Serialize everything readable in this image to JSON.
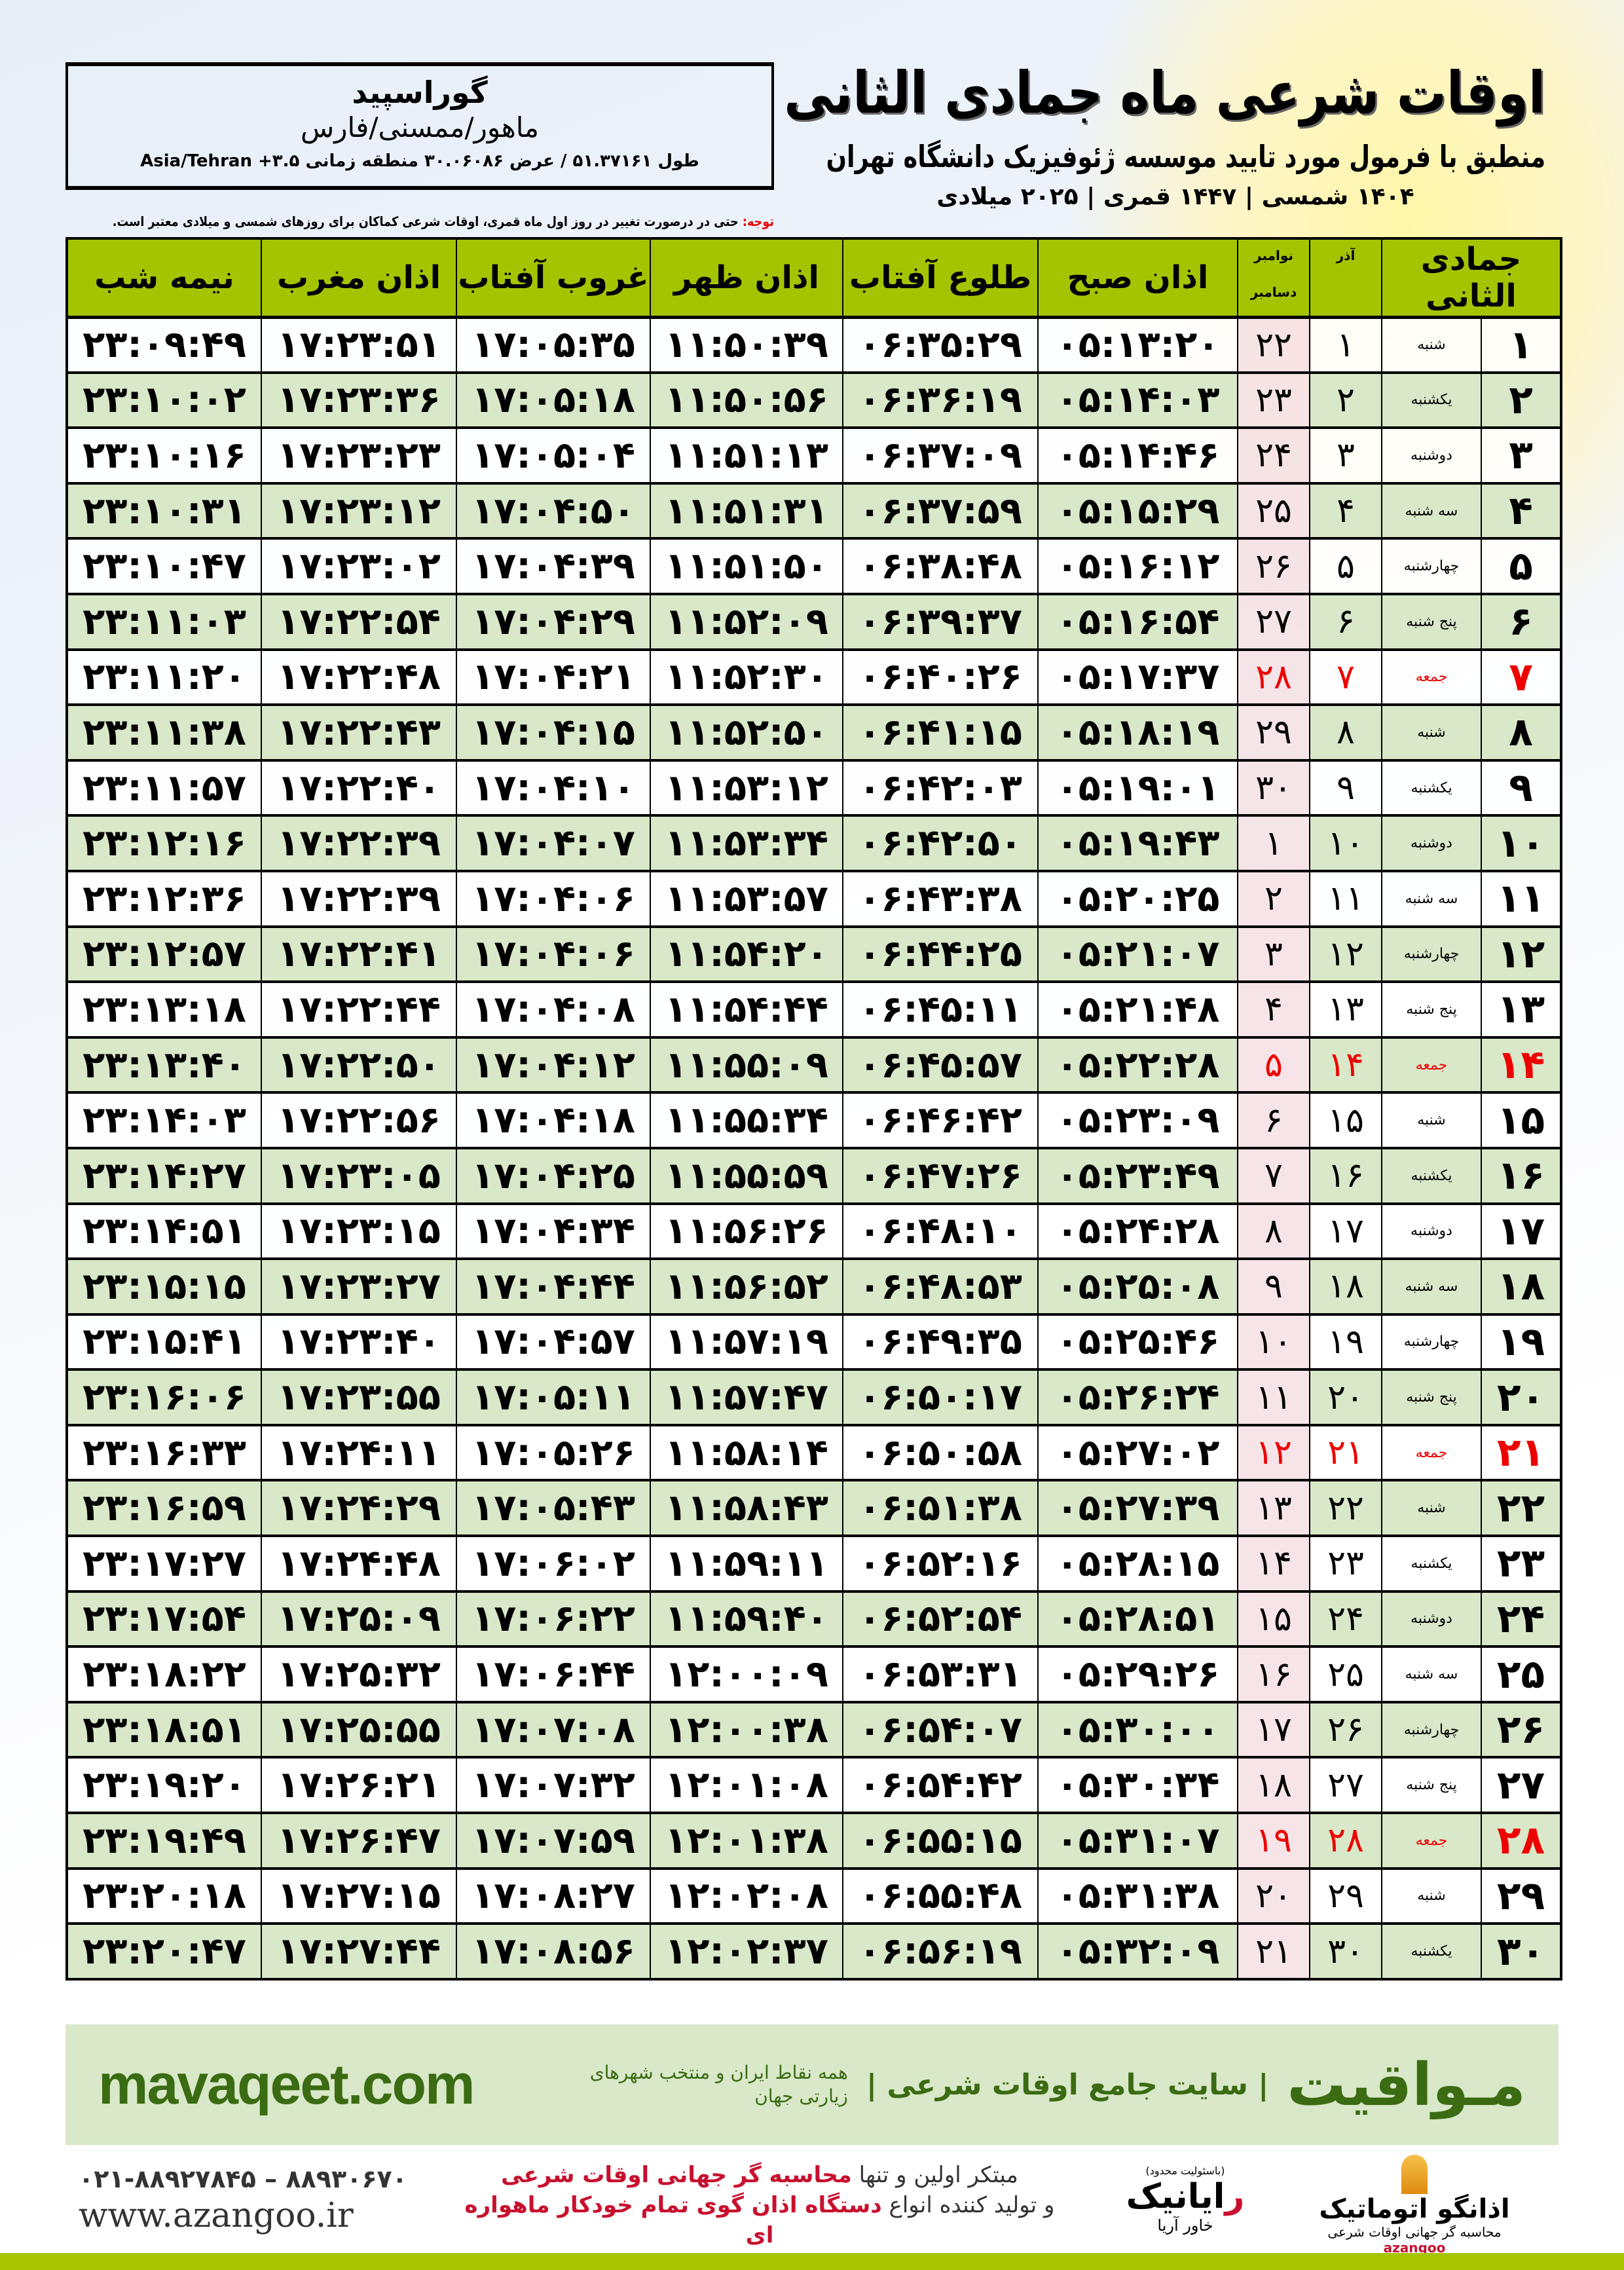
{
  "header": {
    "title": "اوقات شرعی ماه جمادی الثانی",
    "subtitle": "منطبق با فرمول مورد تایید موسسه ژئوفیزیک دانشگاه تهران",
    "dateline": "۱۴۰۴ شمسی | ۱۴۴۷ قمری | ۲۰۲۵ میلادی"
  },
  "location": {
    "city": "گوراسپید",
    "region": "ماهور/ممسنی/فارس",
    "coords": "طول ۵۱.۳۷۱۶۱ / عرض ۳۰.۰۶۰۸۶ منطقه زمانی ۳.۵+ Asia/Tehran"
  },
  "note": {
    "label": "توجه:",
    "text": " حتی در درصورت تغییر در روز اول ماه قمری، اوقات شرعی کماکان برای روزهای شمسی و میلادی معتبر است."
  },
  "columns": {
    "hijri": "جمادی الثانی",
    "azar": "آذر",
    "gregorian_top": "نوامبر",
    "gregorian_bottom": "دسامبر",
    "fajr": "اذان صبح",
    "sunrise": "طلوع آفتاب",
    "dhuhr": "اذان ظهر",
    "sunset": "غروب آفتاب",
    "maghrib": "اذان مغرب",
    "midnight": "نیمه شب"
  },
  "colors": {
    "header_green": "#a5c400",
    "row_alt": "#d8e8c8",
    "holiday": "#e00000",
    "brand_green": "#3b6b12"
  },
  "rows": [
    {
      "day": "۱",
      "weekday": "شنبه",
      "azar": "۱",
      "greg": "۲۲",
      "fajr": "۰۵:۱۳:۲۰",
      "sunrise": "۰۶:۳۵:۲۹",
      "dhuhr": "۱۱:۵۰:۳۹",
      "sunset": "۱۷:۰۵:۳۵",
      "maghrib": "۱۷:۲۳:۵۱",
      "midnight": "۲۳:۰۹:۴۹"
    },
    {
      "day": "۲",
      "weekday": "یکشنبه",
      "azar": "۲",
      "greg": "۲۳",
      "fajr": "۰۵:۱۴:۰۳",
      "sunrise": "۰۶:۳۶:۱۹",
      "dhuhr": "۱۱:۵۰:۵۶",
      "sunset": "۱۷:۰۵:۱۸",
      "maghrib": "۱۷:۲۳:۳۶",
      "midnight": "۲۳:۱۰:۰۲"
    },
    {
      "day": "۳",
      "weekday": "دوشنبه",
      "azar": "۳",
      "greg": "۲۴",
      "fajr": "۰۵:۱۴:۴۶",
      "sunrise": "۰۶:۳۷:۰۹",
      "dhuhr": "۱۱:۵۱:۱۳",
      "sunset": "۱۷:۰۵:۰۴",
      "maghrib": "۱۷:۲۳:۲۳",
      "midnight": "۲۳:۱۰:۱۶"
    },
    {
      "day": "۴",
      "weekday": "سه شنبه",
      "azar": "۴",
      "greg": "۲۵",
      "fajr": "۰۵:۱۵:۲۹",
      "sunrise": "۰۶:۳۷:۵۹",
      "dhuhr": "۱۱:۵۱:۳۱",
      "sunset": "۱۷:۰۴:۵۰",
      "maghrib": "۱۷:۲۳:۱۲",
      "midnight": "۲۳:۱۰:۳۱"
    },
    {
      "day": "۵",
      "weekday": "چهارشنبه",
      "azar": "۵",
      "greg": "۲۶",
      "fajr": "۰۵:۱۶:۱۲",
      "sunrise": "۰۶:۳۸:۴۸",
      "dhuhr": "۱۱:۵۱:۵۰",
      "sunset": "۱۷:۰۴:۳۹",
      "maghrib": "۱۷:۲۳:۰۲",
      "midnight": "۲۳:۱۰:۴۷"
    },
    {
      "day": "۶",
      "weekday": "پنج شنبه",
      "azar": "۶",
      "greg": "۲۷",
      "fajr": "۰۵:۱۶:۵۴",
      "sunrise": "۰۶:۳۹:۳۷",
      "dhuhr": "۱۱:۵۲:۰۹",
      "sunset": "۱۷:۰۴:۲۹",
      "maghrib": "۱۷:۲۲:۵۴",
      "midnight": "۲۳:۱۱:۰۳"
    },
    {
      "day": "۷",
      "weekday": "جمعه",
      "azar": "۷",
      "greg": "۲۸",
      "fajr": "۰۵:۱۷:۳۷",
      "sunrise": "۰۶:۴۰:۲۶",
      "dhuhr": "۱۱:۵۲:۳۰",
      "sunset": "۱۷:۰۴:۲۱",
      "maghrib": "۱۷:۲۲:۴۸",
      "midnight": "۲۳:۱۱:۲۰",
      "holiday": true
    },
    {
      "day": "۸",
      "weekday": "شنبه",
      "azar": "۸",
      "greg": "۲۹",
      "fajr": "۰۵:۱۸:۱۹",
      "sunrise": "۰۶:۴۱:۱۵",
      "dhuhr": "۱۱:۵۲:۵۰",
      "sunset": "۱۷:۰۴:۱۵",
      "maghrib": "۱۷:۲۲:۴۳",
      "midnight": "۲۳:۱۱:۳۸"
    },
    {
      "day": "۹",
      "weekday": "یکشنبه",
      "azar": "۹",
      "greg": "۳۰",
      "fajr": "۰۵:۱۹:۰۱",
      "sunrise": "۰۶:۴۲:۰۳",
      "dhuhr": "۱۱:۵۳:۱۲",
      "sunset": "۱۷:۰۴:۱۰",
      "maghrib": "۱۷:۲۲:۴۰",
      "midnight": "۲۳:۱۱:۵۷"
    },
    {
      "day": "۱۰",
      "weekday": "دوشنبه",
      "azar": "۱۰",
      "greg": "۱",
      "fajr": "۰۵:۱۹:۴۳",
      "sunrise": "۰۶:۴۲:۵۰",
      "dhuhr": "۱۱:۵۳:۳۴",
      "sunset": "۱۷:۰۴:۰۷",
      "maghrib": "۱۷:۲۲:۳۹",
      "midnight": "۲۳:۱۲:۱۶"
    },
    {
      "day": "۱۱",
      "weekday": "سه شنبه",
      "azar": "۱۱",
      "greg": "۲",
      "fajr": "۰۵:۲۰:۲۵",
      "sunrise": "۰۶:۴۳:۳۸",
      "dhuhr": "۱۱:۵۳:۵۷",
      "sunset": "۱۷:۰۴:۰۶",
      "maghrib": "۱۷:۲۲:۳۹",
      "midnight": "۲۳:۱۲:۳۶"
    },
    {
      "day": "۱۲",
      "weekday": "چهارشنبه",
      "azar": "۱۲",
      "greg": "۳",
      "fajr": "۰۵:۲۱:۰۷",
      "sunrise": "۰۶:۴۴:۲۵",
      "dhuhr": "۱۱:۵۴:۲۰",
      "sunset": "۱۷:۰۴:۰۶",
      "maghrib": "۱۷:۲۲:۴۱",
      "midnight": "۲۳:۱۲:۵۷"
    },
    {
      "day": "۱۳",
      "weekday": "پنج شنبه",
      "azar": "۱۳",
      "greg": "۴",
      "fajr": "۰۵:۲۱:۴۸",
      "sunrise": "۰۶:۴۵:۱۱",
      "dhuhr": "۱۱:۵۴:۴۴",
      "sunset": "۱۷:۰۴:۰۸",
      "maghrib": "۱۷:۲۲:۴۴",
      "midnight": "۲۳:۱۳:۱۸"
    },
    {
      "day": "۱۴",
      "weekday": "جمعه",
      "azar": "۱۴",
      "greg": "۵",
      "fajr": "۰۵:۲۲:۲۸",
      "sunrise": "۰۶:۴۵:۵۷",
      "dhuhr": "۱۱:۵۵:۰۹",
      "sunset": "۱۷:۰۴:۱۲",
      "maghrib": "۱۷:۲۲:۵۰",
      "midnight": "۲۳:۱۳:۴۰",
      "holiday": true
    },
    {
      "day": "۱۵",
      "weekday": "شنبه",
      "azar": "۱۵",
      "greg": "۶",
      "fajr": "۰۵:۲۳:۰۹",
      "sunrise": "۰۶:۴۶:۴۲",
      "dhuhr": "۱۱:۵۵:۳۴",
      "sunset": "۱۷:۰۴:۱۸",
      "maghrib": "۱۷:۲۲:۵۶",
      "midnight": "۲۳:۱۴:۰۳"
    },
    {
      "day": "۱۶",
      "weekday": "یکشنبه",
      "azar": "۱۶",
      "greg": "۷",
      "fajr": "۰۵:۲۳:۴۹",
      "sunrise": "۰۶:۴۷:۲۶",
      "dhuhr": "۱۱:۵۵:۵۹",
      "sunset": "۱۷:۰۴:۲۵",
      "maghrib": "۱۷:۲۳:۰۵",
      "midnight": "۲۳:۱۴:۲۷"
    },
    {
      "day": "۱۷",
      "weekday": "دوشنبه",
      "azar": "۱۷",
      "greg": "۸",
      "fajr": "۰۵:۲۴:۲۸",
      "sunrise": "۰۶:۴۸:۱۰",
      "dhuhr": "۱۱:۵۶:۲۶",
      "sunset": "۱۷:۰۴:۳۴",
      "maghrib": "۱۷:۲۳:۱۵",
      "midnight": "۲۳:۱۴:۵۱"
    },
    {
      "day": "۱۸",
      "weekday": "سه شنبه",
      "azar": "۱۸",
      "greg": "۹",
      "fajr": "۰۵:۲۵:۰۸",
      "sunrise": "۰۶:۴۸:۵۳",
      "dhuhr": "۱۱:۵۶:۵۲",
      "sunset": "۱۷:۰۴:۴۴",
      "maghrib": "۱۷:۲۳:۲۷",
      "midnight": "۲۳:۱۵:۱۵"
    },
    {
      "day": "۱۹",
      "weekday": "چهارشنبه",
      "azar": "۱۹",
      "greg": "۱۰",
      "fajr": "۰۵:۲۵:۴۶",
      "sunrise": "۰۶:۴۹:۳۵",
      "dhuhr": "۱۱:۵۷:۱۹",
      "sunset": "۱۷:۰۴:۵۷",
      "maghrib": "۱۷:۲۳:۴۰",
      "midnight": "۲۳:۱۵:۴۱"
    },
    {
      "day": "۲۰",
      "weekday": "پنج شنبه",
      "azar": "۲۰",
      "greg": "۱۱",
      "fajr": "۰۵:۲۶:۲۴",
      "sunrise": "۰۶:۵۰:۱۷",
      "dhuhr": "۱۱:۵۷:۴۷",
      "sunset": "۱۷:۰۵:۱۱",
      "maghrib": "۱۷:۲۳:۵۵",
      "midnight": "۲۳:۱۶:۰۶"
    },
    {
      "day": "۲۱",
      "weekday": "جمعه",
      "azar": "۲۱",
      "greg": "۱۲",
      "fajr": "۰۵:۲۷:۰۲",
      "sunrise": "۰۶:۵۰:۵۸",
      "dhuhr": "۱۱:۵۸:۱۴",
      "sunset": "۱۷:۰۵:۲۶",
      "maghrib": "۱۷:۲۴:۱۱",
      "midnight": "۲۳:۱۶:۳۳",
      "holiday": true
    },
    {
      "day": "۲۲",
      "weekday": "شنبه",
      "azar": "۲۲",
      "greg": "۱۳",
      "fajr": "۰۵:۲۷:۳۹",
      "sunrise": "۰۶:۵۱:۳۸",
      "dhuhr": "۱۱:۵۸:۴۳",
      "sunset": "۱۷:۰۵:۴۳",
      "maghrib": "۱۷:۲۴:۲۹",
      "midnight": "۲۳:۱۶:۵۹"
    },
    {
      "day": "۲۳",
      "weekday": "یکشنبه",
      "azar": "۲۳",
      "greg": "۱۴",
      "fajr": "۰۵:۲۸:۱۵",
      "sunrise": "۰۶:۵۲:۱۶",
      "dhuhr": "۱۱:۵۹:۱۱",
      "sunset": "۱۷:۰۶:۰۲",
      "maghrib": "۱۷:۲۴:۴۸",
      "midnight": "۲۳:۱۷:۲۷"
    },
    {
      "day": "۲۴",
      "weekday": "دوشنبه",
      "azar": "۲۴",
      "greg": "۱۵",
      "fajr": "۰۵:۲۸:۵۱",
      "sunrise": "۰۶:۵۲:۵۴",
      "dhuhr": "۱۱:۵۹:۴۰",
      "sunset": "۱۷:۰۶:۲۲",
      "maghrib": "۱۷:۲۵:۰۹",
      "midnight": "۲۳:۱۷:۵۴"
    },
    {
      "day": "۲۵",
      "weekday": "سه شنبه",
      "azar": "۲۵",
      "greg": "۱۶",
      "fajr": "۰۵:۲۹:۲۶",
      "sunrise": "۰۶:۵۳:۳۱",
      "dhuhr": "۱۲:۰۰:۰۹",
      "sunset": "۱۷:۰۶:۴۴",
      "maghrib": "۱۷:۲۵:۳۲",
      "midnight": "۲۳:۱۸:۲۲"
    },
    {
      "day": "۲۶",
      "weekday": "چهارشنبه",
      "azar": "۲۶",
      "greg": "۱۷",
      "fajr": "۰۵:۳۰:۰۰",
      "sunrise": "۰۶:۵۴:۰۷",
      "dhuhr": "۱۲:۰۰:۳۸",
      "sunset": "۱۷:۰۷:۰۸",
      "maghrib": "۱۷:۲۵:۵۵",
      "midnight": "۲۳:۱۸:۵۱"
    },
    {
      "day": "۲۷",
      "weekday": "پنج شنبه",
      "azar": "۲۷",
      "greg": "۱۸",
      "fajr": "۰۵:۳۰:۳۴",
      "sunrise": "۰۶:۵۴:۴۲",
      "dhuhr": "۱۲:۰۱:۰۸",
      "sunset": "۱۷:۰۷:۳۲",
      "maghrib": "۱۷:۲۶:۲۱",
      "midnight": "۲۳:۱۹:۲۰"
    },
    {
      "day": "۲۸",
      "weekday": "جمعه",
      "azar": "۲۸",
      "greg": "۱۹",
      "fajr": "۰۵:۳۱:۰۷",
      "sunrise": "۰۶:۵۵:۱۵",
      "dhuhr": "۱۲:۰۱:۳۸",
      "sunset": "۱۷:۰۷:۵۹",
      "maghrib": "۱۷:۲۶:۴۷",
      "midnight": "۲۳:۱۹:۴۹",
      "holiday": true
    },
    {
      "day": "۲۹",
      "weekday": "شنبه",
      "azar": "۲۹",
      "greg": "۲۰",
      "fajr": "۰۵:۳۱:۳۸",
      "sunrise": "۰۶:۵۵:۴۸",
      "dhuhr": "۱۲:۰۲:۰۸",
      "sunset": "۱۷:۰۸:۲۷",
      "maghrib": "۱۷:۲۷:۱۵",
      "midnight": "۲۳:۲۰:۱۸"
    },
    {
      "day": "۳۰",
      "weekday": "یکشنبه",
      "azar": "۳۰",
      "greg": "۲۱",
      "fajr": "۰۵:۳۲:۰۹",
      "sunrise": "۰۶:۵۶:۱۹",
      "dhuhr": "۱۲:۰۲:۳۷",
      "sunset": "۱۷:۰۸:۵۶",
      "maghrib": "۱۷:۲۷:۴۴",
      "midnight": "۲۳:۲۰:۴۷"
    }
  ],
  "footer": {
    "brand": "مـواقیت",
    "slogan": "| سایت جامع اوقات شرعی |",
    "slogan2": "همه نقاط ایران و منتخب شهرهای زیارتی جهان",
    "site": "mavaqeet.com",
    "phone": "۰۲۱-۸۸۹۲۷۸۴۵ – ۸۸۹۳۰۶۷۰",
    "web": "www.azangoo.ir",
    "promo1a": "مبتکر اولین و تنها ",
    "promo1b": "محاسبه گر جهانی اوقات شرعی",
    "promo2a": "و تولید کننده انواع ",
    "promo2b": "دستگاه اذان گوی تمام خودکار ماهواره ای",
    "rayanik_note": "(باسئولیت محدود)",
    "rayanik_r": "ر",
    "rayanik": "ایانیک",
    "rayanik_sub": "خاور آریا",
    "azangoo_name": "اذانگو اتوماتیک",
    "azangoo_sub": "محاسبه گر جهانی اوقات شرعی",
    "azangoo_en": "azangoo"
  }
}
